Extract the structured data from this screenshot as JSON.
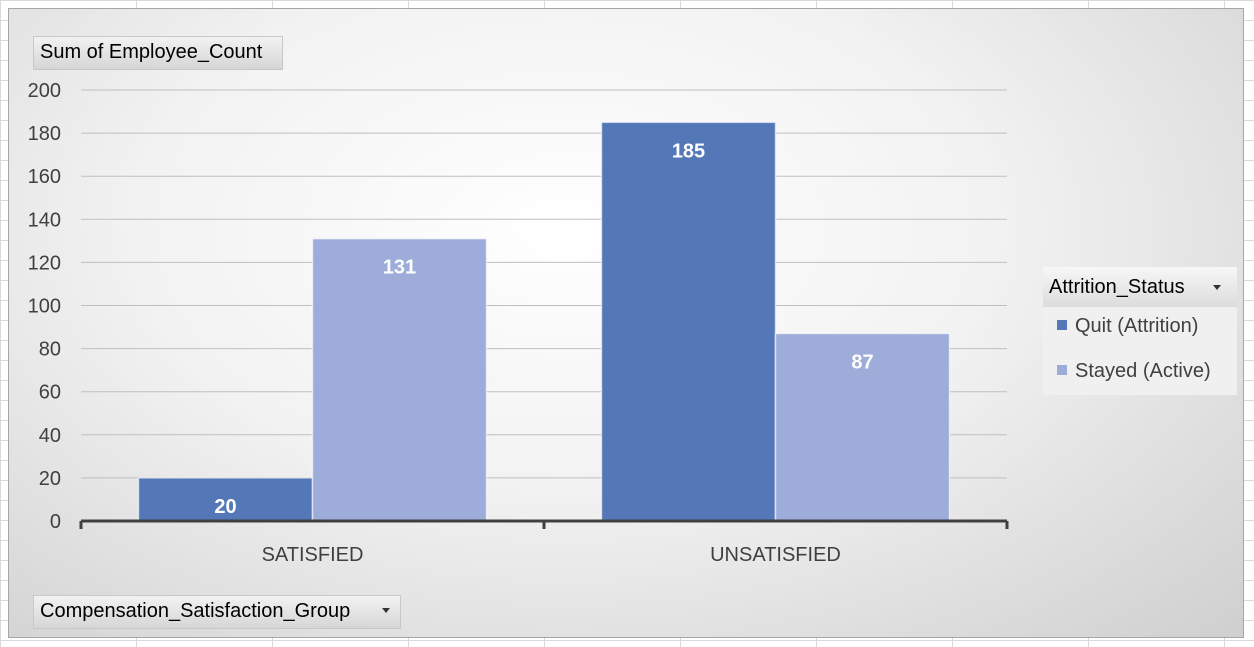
{
  "pivot_fields": {
    "value_field": "Sum of Employee_Count",
    "axis_field": "Compensation_Satisfaction_Group",
    "legend_field": "Attrition_Status"
  },
  "colors": {
    "quit": "#5477b8",
    "stayed": "#9dacd8",
    "gridline": "#bfbfbf",
    "axis": "#404040",
    "label_text": "#404040"
  },
  "chart_data": {
    "type": "bar",
    "categories": [
      "SATISFIED",
      "UNSATISFIED"
    ],
    "series": [
      {
        "name": "Quit (Attrition)",
        "values": [
          20,
          185
        ]
      },
      {
        "name": "Stayed (Active)",
        "values": [
          131,
          87
        ]
      }
    ],
    "ylim": [
      0,
      200
    ],
    "yticks": [
      0,
      20,
      40,
      60,
      80,
      100,
      120,
      140,
      160,
      180,
      200
    ],
    "grid": true,
    "data_labels": true,
    "legend_position": "right"
  }
}
